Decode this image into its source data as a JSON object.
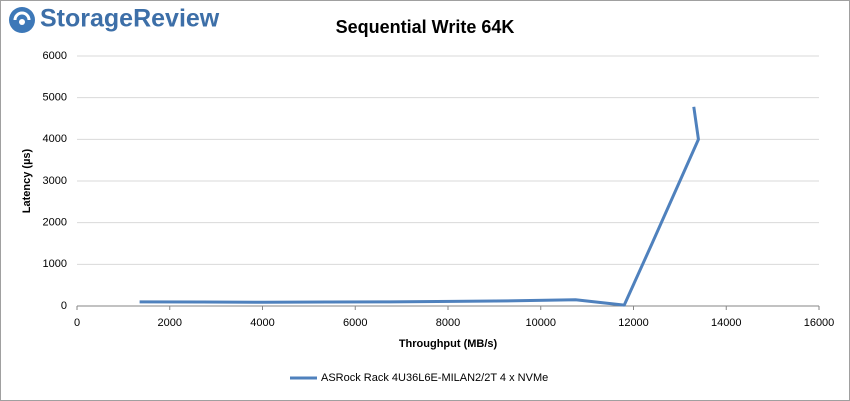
{
  "logo": "StorageReview",
  "chart_data": {
    "type": "line",
    "title": "Sequential Write 64K",
    "x_label": "Throughput (MB/s)",
    "y_label": "Latency (µs)",
    "x": [
      1350,
      2700,
      4050,
      5400,
      6750,
      8100,
      9450,
      10750,
      11800,
      12400,
      13400,
      13300
    ],
    "series": [
      {
        "name": "ASRock Rack 4U36L6E-MILAN2/2T 4 x NVMe",
        "color": "#4f81bd",
        "values": [
          100,
          95,
          90,
          95,
          100,
          110,
          125,
          150,
          20,
          1500,
          4000,
          4780
        ]
      }
    ],
    "xlim": [
      0,
      16000
    ],
    "xticks": [
      0,
      2000,
      4000,
      6000,
      8000,
      10000,
      12000,
      14000,
      16000
    ],
    "ylim": [
      0,
      6000
    ],
    "yticks": [
      0,
      1000,
      2000,
      3000,
      4000,
      5000,
      6000
    ],
    "grid": true,
    "legend": "bottom"
  }
}
